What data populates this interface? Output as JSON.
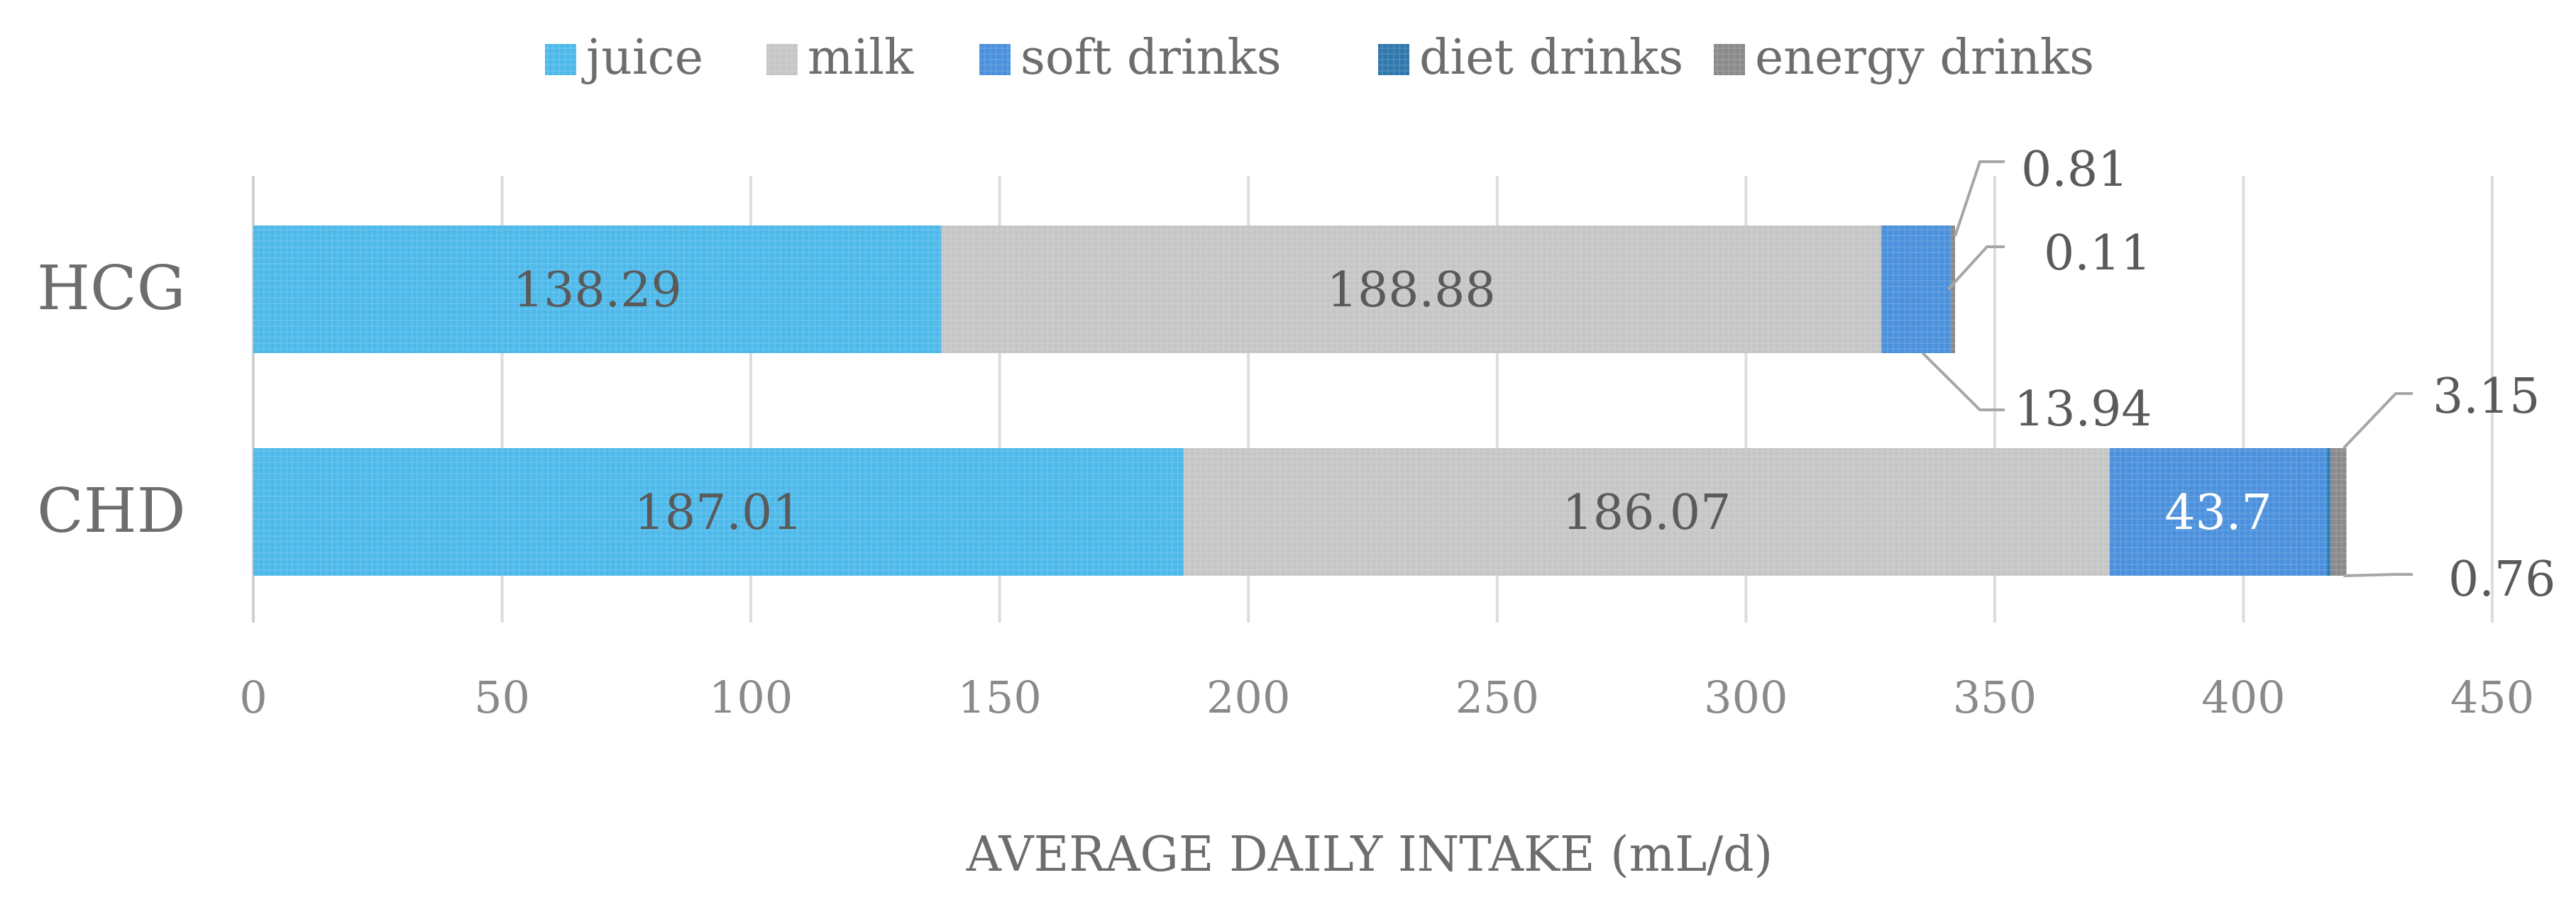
{
  "chart_data": {
    "type": "bar",
    "orientation": "horizontal",
    "stacked": true,
    "categories": [
      "HCG",
      "CHD"
    ],
    "series": [
      {
        "name": "juice",
        "values": [
          138.29,
          187.01
        ],
        "color": "#4db9ea"
      },
      {
        "name": "milk",
        "values": [
          188.88,
          186.07
        ],
        "color": "#c6c6c6"
      },
      {
        "name": "soft drinks",
        "values": [
          13.94,
          43.7
        ],
        "color": "#4a90dc"
      },
      {
        "name": "diet drinks",
        "values": [
          0.11,
          0.76
        ],
        "color": "#2f78ad"
      },
      {
        "name": "energy drinks",
        "values": [
          0.81,
          3.15
        ],
        "color": "#8a8a8a"
      }
    ],
    "data_labels": {
      "HCG": [
        "138.29",
        "188.88",
        "13.94",
        "0.11",
        "0.81"
      ],
      "CHD": [
        "187.01",
        "186.07",
        "43.7",
        "0.76",
        "3.15"
      ]
    },
    "xlabel": "AVERAGE DAILY INTAKE (mL/d)",
    "ylabel": "",
    "xlim": [
      0,
      450
    ],
    "xticks": [
      "0",
      "50",
      "100",
      "150",
      "200",
      "250",
      "300",
      "350",
      "400",
      "450"
    ],
    "grid": true,
    "legend": "top"
  }
}
